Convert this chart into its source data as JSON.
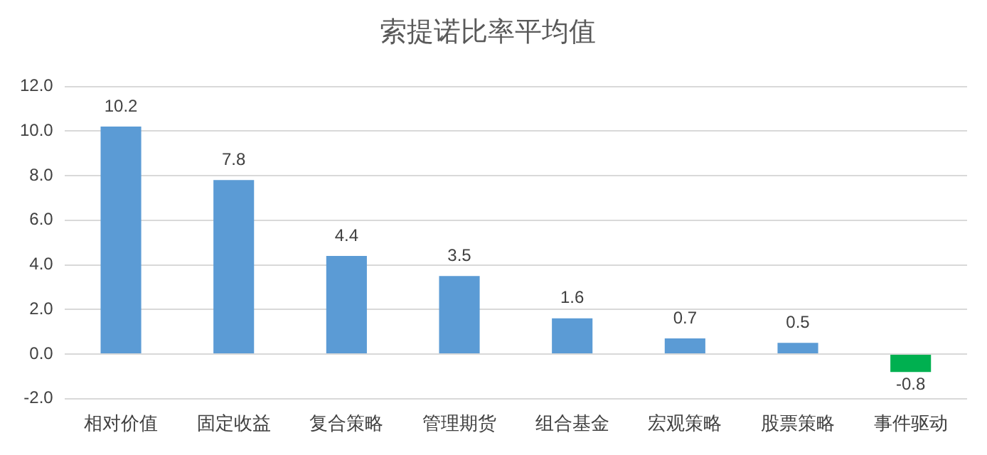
{
  "chart_data": {
    "type": "bar",
    "title": "索提诺比率平均值",
    "categories": [
      "相对价值",
      "固定收益",
      "复合策略",
      "管理期货",
      "组合基金",
      "宏观策略",
      "股票策略",
      "事件驱动"
    ],
    "values": [
      10.2,
      7.8,
      4.4,
      3.5,
      1.6,
      0.7,
      0.5,
      -0.8
    ],
    "colors": [
      "#5b9bd5",
      "#5b9bd5",
      "#5b9bd5",
      "#5b9bd5",
      "#5b9bd5",
      "#5b9bd5",
      "#5b9bd5",
      "#00b050"
    ],
    "ylim": [
      -2,
      12
    ],
    "yticks": [
      {
        "value": -2,
        "label": "-2.0"
      },
      {
        "value": 0,
        "label": "0.0"
      },
      {
        "value": 2,
        "label": "2.0"
      },
      {
        "value": 4,
        "label": "4.0"
      },
      {
        "value": 6,
        "label": "6.0"
      },
      {
        "value": 8,
        "label": "8.0"
      },
      {
        "value": 10,
        "label": "10.0"
      },
      {
        "value": 12,
        "label": "12.0"
      }
    ],
    "grid": "y",
    "data_labels": true
  }
}
